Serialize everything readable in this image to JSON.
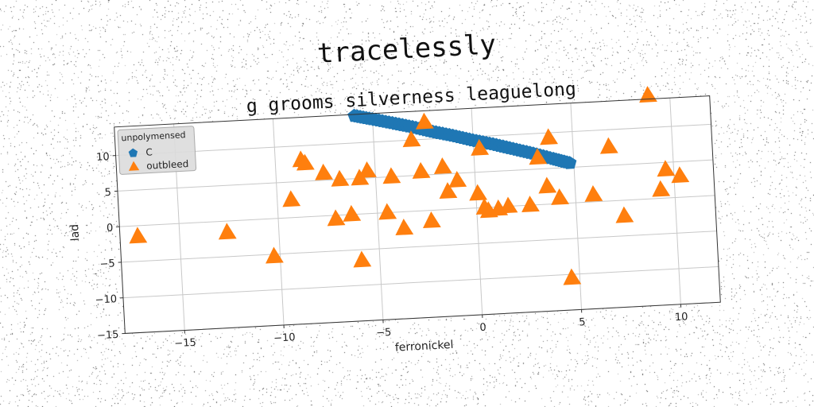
{
  "figure": {
    "suptitle": "tracelessly"
  },
  "colors": {
    "series_c": "#1f77b4",
    "series_outbleed": "#ff7f0e",
    "grid": "#c8c8c8",
    "legend_bg": "#dcdcdc"
  },
  "chart_data": {
    "type": "scatter",
    "title": "g grooms silverness leaguelong",
    "xlabel": "ferronickel",
    "ylabel": "lad",
    "xlim": [
      -18,
      12
    ],
    "ylim": [
      -15,
      14
    ],
    "xticks": [
      -15,
      -10,
      -5,
      0,
      5,
      10
    ],
    "yticks": [
      -15,
      -10,
      -5,
      0,
      5,
      10
    ],
    "xtick_labels": [
      "−15",
      "−10",
      "−5",
      "0",
      "5",
      "10"
    ],
    "ytick_labels": [
      "−15",
      "−10",
      "−5",
      "0",
      "5",
      "10"
    ],
    "grid": true,
    "legend": {
      "title": "unpolymensed",
      "position": "top-left"
    },
    "series": [
      {
        "name": "C",
        "marker": "pentagon",
        "x": [
          -5.9,
          -5.0,
          -4.0,
          -3.0,
          -2.0,
          -1.0,
          0.0,
          1.0,
          2.0,
          3.0,
          4.0,
          4.8
        ],
        "y": [
          13.8,
          13.2,
          12.5,
          11.8,
          11.0,
          10.3,
          9.5,
          8.8,
          8.0,
          7.2,
          6.3,
          5.6
        ]
      },
      {
        "name": "outbleed",
        "marker": "triangle",
        "x": [
          -17.1,
          -12.6,
          -10.3,
          -9.3,
          -8.7,
          -8.5,
          -7.6,
          -7.1,
          -6.8,
          -6.3,
          -5.9,
          -5.8,
          -5.4,
          -4.5,
          -4.2,
          -3.7,
          -3.1,
          -2.7,
          -2.4,
          -2.3,
          -1.6,
          -1.4,
          -0.9,
          0.1,
          0.3,
          0.4,
          0.6,
          1.1,
          1.6,
          2.7,
          3.2,
          3.6,
          3.8,
          4.2,
          4.6,
          5.9,
          6.8,
          7.4,
          8.9,
          9.3,
          9.6,
          10.3
        ],
        "y": [
          -1.5,
          -1.6,
          -5.3,
          2.5,
          8.0,
          7.5,
          6.0,
          -0.5,
          5.0,
          0.0,
          -6.5,
          5.0,
          6.0,
          0.0,
          5.0,
          -2.3,
          10.0,
          5.5,
          12.4,
          -1.5,
          6.0,
          2.5,
          4.0,
          2.0,
          8.3,
          0.0,
          -0.5,
          -0.3,
          0.0,
          0.0,
          6.6,
          2.5,
          9.3,
          0.8,
          -10.5,
          1.0,
          7.6,
          -2.2,
          14.5,
          1.2,
          4.0,
          3.0
        ]
      }
    ]
  }
}
